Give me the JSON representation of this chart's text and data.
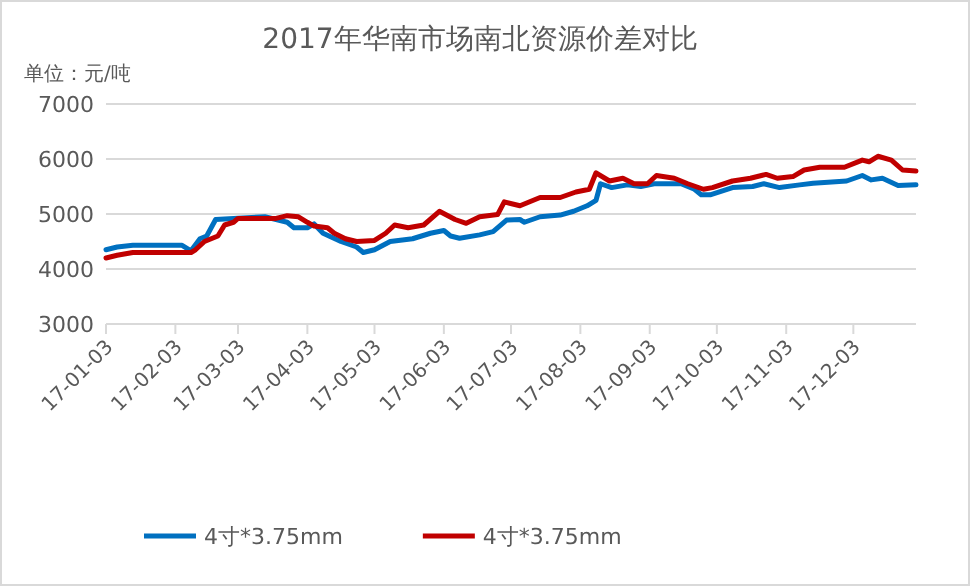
{
  "chart_data": {
    "type": "line",
    "title": "2017年华南市场南北资源价差对比",
    "ylabel": "单位：元/吨",
    "xlim": [
      "2017-01-03",
      "2017-12-31"
    ],
    "xticks": [
      {
        "value": "2017-01-03",
        "label": "17-01-03"
      },
      {
        "value": "2017-02-03",
        "label": "17-02-03"
      },
      {
        "value": "2017-03-03",
        "label": "17-03-03"
      },
      {
        "value": "2017-04-03",
        "label": "17-04-03"
      },
      {
        "value": "2017-05-03",
        "label": "17-05-03"
      },
      {
        "value": "2017-06-03",
        "label": "17-06-03"
      },
      {
        "value": "2017-07-03",
        "label": "17-07-03"
      },
      {
        "value": "2017-08-03",
        "label": "17-08-03"
      },
      {
        "value": "2017-09-03",
        "label": "17-09-03"
      },
      {
        "value": "2017-10-03",
        "label": "17-10-03"
      },
      {
        "value": "2017-11-03",
        "label": "17-11-03"
      },
      {
        "value": "2017-12-03",
        "label": "17-12-03"
      }
    ],
    "ylim": [
      3000,
      7000
    ],
    "yticks": [
      3000,
      4000,
      5000,
      6000,
      7000
    ],
    "grid": "y",
    "legend": "bottom",
    "marker": "none",
    "line_style": "solid",
    "series": [
      {
        "name": "4寸*3.75mm",
        "color": "#0070c0",
        "x": [
          "2017-01-03",
          "2017-01-08",
          "2017-01-15",
          "2017-02-06",
          "2017-02-10",
          "2017-02-14",
          "2017-02-17",
          "2017-02-21",
          "2017-03-01",
          "2017-03-15",
          "2017-03-25",
          "2017-03-28",
          "2017-04-03",
          "2017-04-06",
          "2017-04-10",
          "2017-04-18",
          "2017-04-25",
          "2017-04-28",
          "2017-05-03",
          "2017-05-10",
          "2017-05-20",
          "2017-05-28",
          "2017-06-03",
          "2017-06-06",
          "2017-06-10",
          "2017-06-19",
          "2017-06-25",
          "2017-07-01",
          "2017-07-07",
          "2017-07-09",
          "2017-07-16",
          "2017-07-25",
          "2017-07-31",
          "2017-08-06",
          "2017-08-10",
          "2017-08-12",
          "2017-08-17",
          "2017-08-24",
          "2017-08-30",
          "2017-09-05",
          "2017-09-17",
          "2017-09-23",
          "2017-09-26",
          "2017-09-30",
          "2017-10-10",
          "2017-10-19",
          "2017-10-24",
          "2017-10-31",
          "2017-11-09",
          "2017-11-15",
          "2017-11-30",
          "2017-12-07",
          "2017-12-11",
          "2017-12-16",
          "2017-12-23",
          "2017-12-31"
        ],
        "values": [
          4350,
          4400,
          4430,
          4430,
          4330,
          4550,
          4600,
          4900,
          4920,
          4950,
          4850,
          4750,
          4750,
          4820,
          4650,
          4500,
          4400,
          4300,
          4350,
          4500,
          4550,
          4650,
          4700,
          4600,
          4560,
          4620,
          4680,
          4890,
          4900,
          4850,
          4950,
          4980,
          5050,
          5150,
          5250,
          5550,
          5480,
          5530,
          5500,
          5550,
          5550,
          5450,
          5350,
          5350,
          5480,
          5500,
          5550,
          5480,
          5530,
          5560,
          5600,
          5700,
          5620,
          5650,
          5520,
          5530
        ]
      },
      {
        "name": "4寸*3.75mm",
        "color": "#c00000",
        "x": [
          "2017-01-03",
          "2017-01-08",
          "2017-01-15",
          "2017-02-10",
          "2017-02-12",
          "2017-02-16",
          "2017-02-22",
          "2017-02-25",
          "2017-03-01",
          "2017-03-03",
          "2017-03-20",
          "2017-03-25",
          "2017-03-30",
          "2017-04-03",
          "2017-04-06",
          "2017-04-12",
          "2017-04-15",
          "2017-04-20",
          "2017-04-25",
          "2017-05-03",
          "2017-05-08",
          "2017-05-12",
          "2017-05-18",
          "2017-05-25",
          "2017-06-01",
          "2017-06-08",
          "2017-06-13",
          "2017-06-19",
          "2017-06-27",
          "2017-06-30",
          "2017-07-07",
          "2017-07-16",
          "2017-07-25",
          "2017-08-01",
          "2017-08-07",
          "2017-08-10",
          "2017-08-16",
          "2017-08-22",
          "2017-08-27",
          "2017-09-02",
          "2017-09-06",
          "2017-09-14",
          "2017-09-20",
          "2017-09-27",
          "2017-10-01",
          "2017-10-10",
          "2017-10-18",
          "2017-10-25",
          "2017-10-30",
          "2017-11-06",
          "2017-11-11",
          "2017-11-18",
          "2017-11-29",
          "2017-12-07",
          "2017-12-10",
          "2017-12-14",
          "2017-12-20",
          "2017-12-25",
          "2017-12-31"
        ],
        "values": [
          4200,
          4250,
          4300,
          4300,
          4350,
          4500,
          4600,
          4800,
          4850,
          4920,
          4920,
          4970,
          4950,
          4850,
          4780,
          4750,
          4650,
          4550,
          4500,
          4520,
          4650,
          4800,
          4750,
          4800,
          5050,
          4900,
          4830,
          4950,
          4990,
          5220,
          5150,
          5300,
          5300,
          5400,
          5450,
          5750,
          5600,
          5650,
          5550,
          5550,
          5700,
          5650,
          5550,
          5450,
          5480,
          5600,
          5650,
          5720,
          5650,
          5680,
          5800,
          5850,
          5850,
          5980,
          5950,
          6050,
          5980,
          5800,
          5780
        ]
      }
    ]
  }
}
